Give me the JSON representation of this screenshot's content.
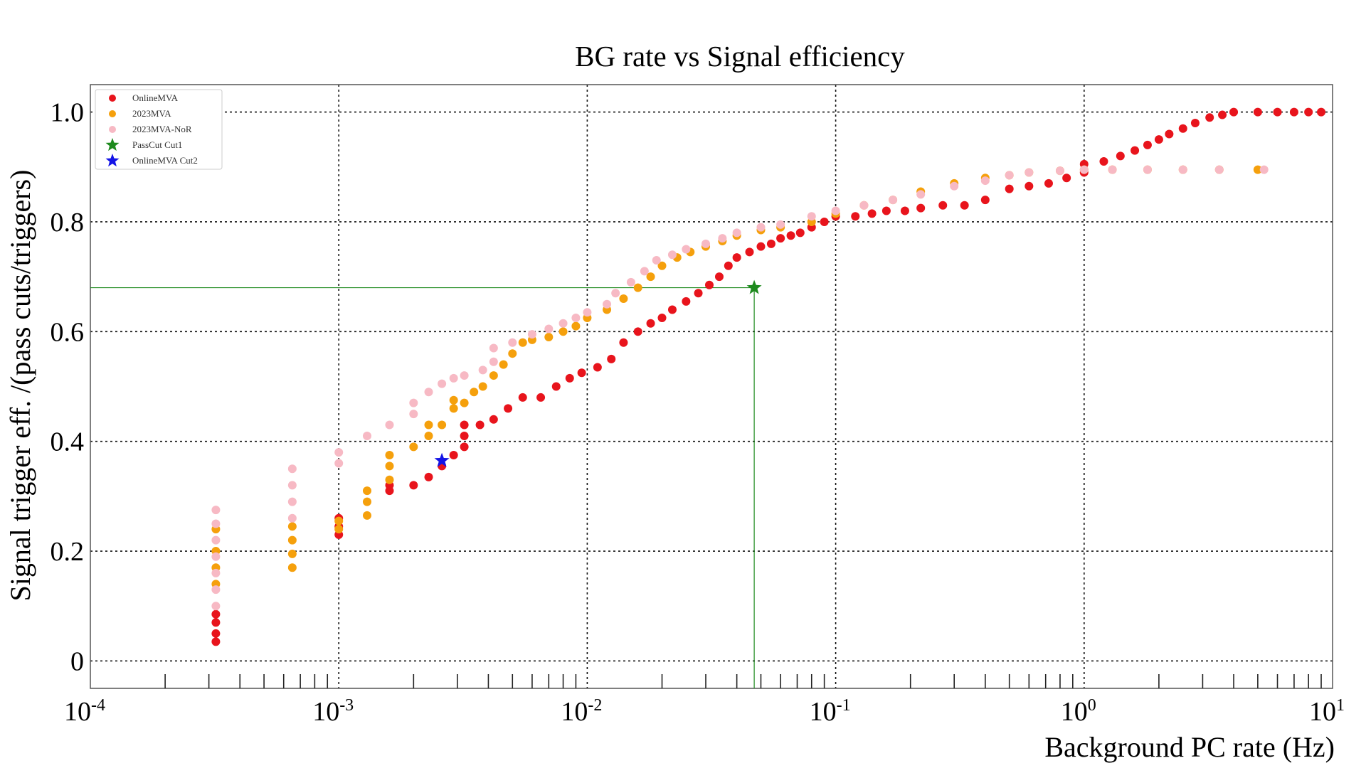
{
  "chart_data": {
    "type": "scatter",
    "title": "BG rate vs Signal efficiency",
    "xlabel": "Background PC rate (Hz)",
    "ylabel": "Signal trigger eff. /(pass cuts/triggers)",
    "xscale": "log",
    "xlim": [
      0.0001,
      10
    ],
    "ylim": [
      -0.05,
      1.05
    ],
    "grid": true,
    "legend_position": "top-left",
    "x_ticks": [
      {
        "base": "10",
        "exp": "-4"
      },
      {
        "base": "10",
        "exp": "-3"
      },
      {
        "base": "10",
        "exp": "-2"
      },
      {
        "base": "10",
        "exp": "-1"
      },
      {
        "base": "10",
        "exp": "0"
      },
      {
        "base": "10",
        "exp": "1"
      }
    ],
    "y_ticks": [
      "0",
      "0.2",
      "0.4",
      "0.6",
      "0.8",
      "1.0"
    ],
    "series": [
      {
        "name": "OnlineMVA",
        "color": "#e8141c",
        "marker": "circle",
        "points": [
          [
            0.00032,
            0.035
          ],
          [
            0.00032,
            0.05
          ],
          [
            0.00032,
            0.07
          ],
          [
            0.00032,
            0.085
          ],
          [
            0.001,
            0.23
          ],
          [
            0.001,
            0.245
          ],
          [
            0.001,
            0.26
          ],
          [
            0.0016,
            0.31
          ],
          [
            0.0016,
            0.32
          ],
          [
            0.002,
            0.32
          ],
          [
            0.0023,
            0.335
          ],
          [
            0.0026,
            0.355
          ],
          [
            0.0029,
            0.375
          ],
          [
            0.0032,
            0.39
          ],
          [
            0.0032,
            0.41
          ],
          [
            0.0032,
            0.43
          ],
          [
            0.0037,
            0.43
          ],
          [
            0.0042,
            0.44
          ],
          [
            0.0048,
            0.46
          ],
          [
            0.0055,
            0.48
          ],
          [
            0.0065,
            0.48
          ],
          [
            0.0075,
            0.5
          ],
          [
            0.0085,
            0.515
          ],
          [
            0.0095,
            0.525
          ],
          [
            0.011,
            0.535
          ],
          [
            0.0125,
            0.55
          ],
          [
            0.014,
            0.58
          ],
          [
            0.016,
            0.6
          ],
          [
            0.018,
            0.615
          ],
          [
            0.02,
            0.625
          ],
          [
            0.022,
            0.64
          ],
          [
            0.025,
            0.655
          ],
          [
            0.028,
            0.67
          ],
          [
            0.031,
            0.685
          ],
          [
            0.034,
            0.7
          ],
          [
            0.037,
            0.72
          ],
          [
            0.04,
            0.735
          ],
          [
            0.045,
            0.745
          ],
          [
            0.05,
            0.755
          ],
          [
            0.055,
            0.76
          ],
          [
            0.06,
            0.77
          ],
          [
            0.066,
            0.775
          ],
          [
            0.072,
            0.78
          ],
          [
            0.08,
            0.79
          ],
          [
            0.09,
            0.8
          ],
          [
            0.1,
            0.81
          ],
          [
            0.12,
            0.81
          ],
          [
            0.14,
            0.815
          ],
          [
            0.16,
            0.82
          ],
          [
            0.19,
            0.82
          ],
          [
            0.22,
            0.825
          ],
          [
            0.27,
            0.83
          ],
          [
            0.33,
            0.83
          ],
          [
            0.4,
            0.84
          ],
          [
            0.5,
            0.86
          ],
          [
            0.6,
            0.865
          ],
          [
            0.72,
            0.87
          ],
          [
            0.85,
            0.88
          ],
          [
            1.0,
            0.89
          ],
          [
            1.0,
            0.905
          ],
          [
            1.2,
            0.91
          ],
          [
            1.4,
            0.92
          ],
          [
            1.6,
            0.93
          ],
          [
            1.8,
            0.94
          ],
          [
            2.0,
            0.95
          ],
          [
            2.2,
            0.96
          ],
          [
            2.5,
            0.97
          ],
          [
            2.8,
            0.98
          ],
          [
            3.2,
            0.99
          ],
          [
            3.6,
            0.995
          ],
          [
            4.0,
            1.0
          ],
          [
            5.0,
            1.0
          ],
          [
            6.0,
            1.0
          ],
          [
            7.0,
            1.0
          ],
          [
            8.0,
            1.0
          ],
          [
            9.0,
            1.0
          ]
        ]
      },
      {
        "name": "2023MVA",
        "color": "#f5a00c",
        "marker": "circle",
        "points": [
          [
            0.00032,
            0.14
          ],
          [
            0.00032,
            0.17
          ],
          [
            0.00032,
            0.2
          ],
          [
            0.00032,
            0.24
          ],
          [
            0.00065,
            0.17
          ],
          [
            0.00065,
            0.195
          ],
          [
            0.00065,
            0.22
          ],
          [
            0.00065,
            0.245
          ],
          [
            0.001,
            0.24
          ],
          [
            0.001,
            0.255
          ],
          [
            0.0013,
            0.265
          ],
          [
            0.0013,
            0.29
          ],
          [
            0.0013,
            0.31
          ],
          [
            0.0016,
            0.33
          ],
          [
            0.0016,
            0.355
          ],
          [
            0.0016,
            0.375
          ],
          [
            0.002,
            0.39
          ],
          [
            0.0023,
            0.41
          ],
          [
            0.0023,
            0.43
          ],
          [
            0.0026,
            0.43
          ],
          [
            0.0029,
            0.46
          ],
          [
            0.0029,
            0.475
          ],
          [
            0.0032,
            0.47
          ],
          [
            0.0035,
            0.49
          ],
          [
            0.0038,
            0.5
          ],
          [
            0.0042,
            0.52
          ],
          [
            0.0046,
            0.54
          ],
          [
            0.005,
            0.56
          ],
          [
            0.0055,
            0.58
          ],
          [
            0.006,
            0.585
          ],
          [
            0.007,
            0.59
          ],
          [
            0.008,
            0.6
          ],
          [
            0.009,
            0.61
          ],
          [
            0.01,
            0.625
          ],
          [
            0.012,
            0.64
          ],
          [
            0.014,
            0.66
          ],
          [
            0.016,
            0.68
          ],
          [
            0.018,
            0.7
          ],
          [
            0.02,
            0.72
          ],
          [
            0.023,
            0.735
          ],
          [
            0.026,
            0.745
          ],
          [
            0.03,
            0.755
          ],
          [
            0.035,
            0.765
          ],
          [
            0.04,
            0.775
          ],
          [
            0.05,
            0.785
          ],
          [
            0.06,
            0.79
          ],
          [
            0.08,
            0.8
          ],
          [
            0.1,
            0.815
          ],
          [
            0.13,
            0.83
          ],
          [
            0.17,
            0.84
          ],
          [
            0.22,
            0.855
          ],
          [
            0.3,
            0.87
          ],
          [
            0.4,
            0.88
          ],
          [
            0.5,
            0.885
          ],
          [
            0.6,
            0.89
          ],
          [
            0.8,
            0.893
          ],
          [
            1.0,
            0.895
          ],
          [
            1.3,
            0.895
          ],
          [
            1.8,
            0.895
          ],
          [
            2.5,
            0.895
          ],
          [
            3.5,
            0.895
          ],
          [
            5.0,
            0.895
          ]
        ]
      },
      {
        "name": "2023MVA-NoR",
        "color": "#f7b9c4",
        "marker": "circle",
        "points": [
          [
            0.00032,
            0.1
          ],
          [
            0.00032,
            0.13
          ],
          [
            0.00032,
            0.16
          ],
          [
            0.00032,
            0.19
          ],
          [
            0.00032,
            0.22
          ],
          [
            0.00032,
            0.25
          ],
          [
            0.00032,
            0.275
          ],
          [
            0.00065,
            0.26
          ],
          [
            0.00065,
            0.29
          ],
          [
            0.00065,
            0.32
          ],
          [
            0.00065,
            0.35
          ],
          [
            0.001,
            0.36
          ],
          [
            0.001,
            0.38
          ],
          [
            0.0013,
            0.41
          ],
          [
            0.0016,
            0.43
          ],
          [
            0.002,
            0.45
          ],
          [
            0.002,
            0.47
          ],
          [
            0.0023,
            0.49
          ],
          [
            0.0026,
            0.505
          ],
          [
            0.0029,
            0.515
          ],
          [
            0.0032,
            0.52
          ],
          [
            0.0038,
            0.53
          ],
          [
            0.0042,
            0.545
          ],
          [
            0.0042,
            0.57
          ],
          [
            0.005,
            0.58
          ],
          [
            0.006,
            0.595
          ],
          [
            0.007,
            0.605
          ],
          [
            0.008,
            0.615
          ],
          [
            0.009,
            0.625
          ],
          [
            0.01,
            0.635
          ],
          [
            0.012,
            0.65
          ],
          [
            0.013,
            0.67
          ],
          [
            0.015,
            0.69
          ],
          [
            0.017,
            0.71
          ],
          [
            0.019,
            0.73
          ],
          [
            0.022,
            0.74
          ],
          [
            0.025,
            0.75
          ],
          [
            0.03,
            0.76
          ],
          [
            0.035,
            0.77
          ],
          [
            0.04,
            0.78
          ],
          [
            0.05,
            0.79
          ],
          [
            0.06,
            0.795
          ],
          [
            0.08,
            0.81
          ],
          [
            0.1,
            0.82
          ],
          [
            0.13,
            0.83
          ],
          [
            0.17,
            0.84
          ],
          [
            0.22,
            0.85
          ],
          [
            0.3,
            0.865
          ],
          [
            0.4,
            0.875
          ],
          [
            0.5,
            0.885
          ],
          [
            0.6,
            0.89
          ],
          [
            0.8,
            0.893
          ],
          [
            1.0,
            0.895
          ],
          [
            1.3,
            0.895
          ],
          [
            1.8,
            0.895
          ],
          [
            2.5,
            0.895
          ],
          [
            3.5,
            0.895
          ],
          [
            5.3,
            0.895
          ]
        ]
      },
      {
        "name": "PassCut Cut1",
        "color": "#1e8a1e",
        "marker": "star",
        "points": [
          [
            0.047,
            0.68
          ]
        ]
      },
      {
        "name": "OnlineMVA Cut2",
        "color": "#1414e6",
        "marker": "star",
        "points": [
          [
            0.0026,
            0.365
          ]
        ]
      }
    ]
  }
}
